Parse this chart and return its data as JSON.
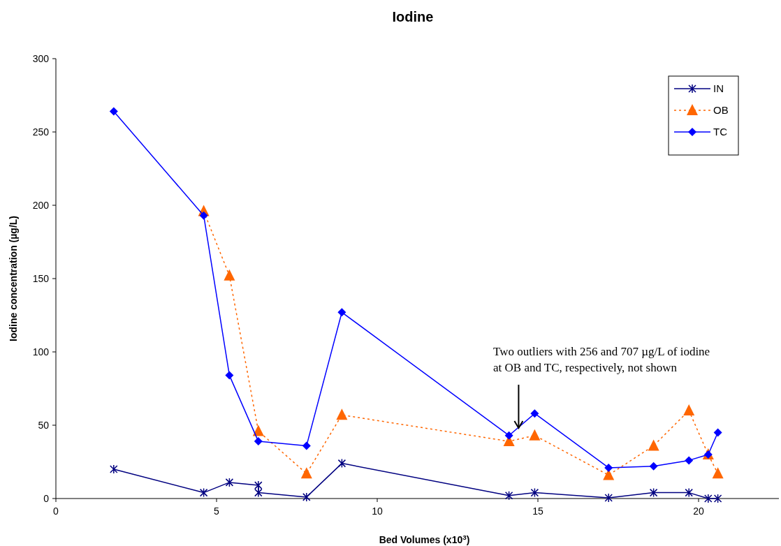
{
  "chart_data": {
    "type": "line",
    "title": "Iodine",
    "xlabel": "Bed Volumes (x10$^{3}$)",
    "ylabel": "Iodine concentration (µg/L)",
    "xlim": [
      0,
      22.5
    ],
    "xticks": [
      0,
      5,
      10,
      15,
      20
    ],
    "ylim": [
      0,
      300
    ],
    "yticks": [
      0,
      50,
      100,
      150,
      200,
      250,
      300
    ],
    "grid": false,
    "legend": "top right",
    "series": [
      {
        "name": "IN",
        "color": "#000080",
        "marker": "cross",
        "line_style": "solid",
        "x": [
          1.8,
          4.6,
          5.4,
          6.3,
          6.3,
          7.8,
          8.9,
          14.1,
          14.9,
          17.2,
          18.6,
          19.7,
          20.3,
          20.6
        ],
        "values": [
          20,
          4,
          11,
          9,
          4,
          1,
          24,
          2,
          4,
          0.5,
          4,
          4,
          0,
          0
        ]
      },
      {
        "name": "OB",
        "color": "#ff6600",
        "marker": "triangle",
        "line_style": "dotted",
        "x": [
          4.6,
          5.4,
          6.3,
          7.8,
          8.9,
          14.1,
          14.9,
          17.2,
          18.6,
          19.7,
          20.3,
          20.6
        ],
        "values": [
          196,
          152,
          46,
          17,
          57,
          39,
          43,
          16,
          36,
          60,
          30,
          17
        ]
      },
      {
        "name": "TC",
        "color": "#0000ff",
        "marker": "diamond",
        "line_style": "solid",
        "x": [
          1.8,
          4.6,
          5.4,
          6.3,
          7.8,
          8.9,
          14.1,
          14.9,
          17.2,
          18.6,
          19.7,
          20.3,
          20.6
        ],
        "values": [
          264,
          193,
          84,
          39,
          36,
          127,
          43,
          58,
          21,
          22,
          26,
          30,
          45
        ]
      }
    ],
    "annotations": [
      {
        "text": "Two outliers with 256 and 707 µg/L of iodine at OB and TC, respectively, not shown",
        "x": 14.4,
        "y": 49
      }
    ]
  }
}
